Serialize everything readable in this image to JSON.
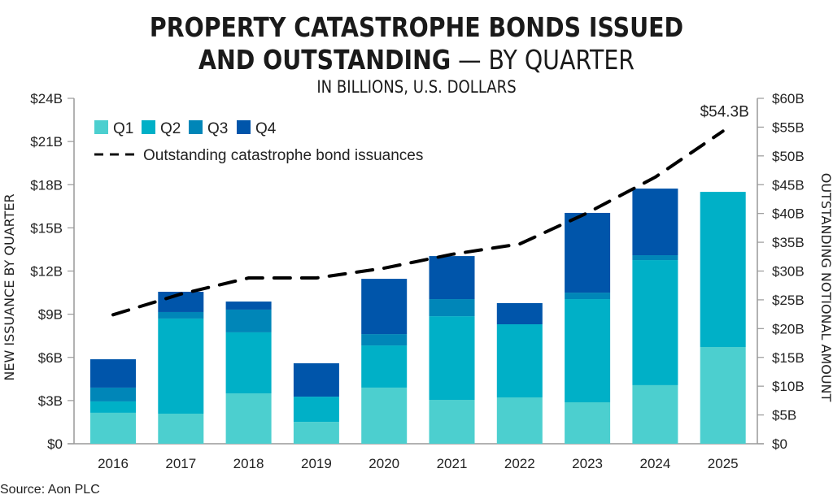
{
  "header": {
    "title_line1": "PROPERTY CATASTROPHE BONDS ISSUED",
    "title_line2_bold": "AND OUTSTANDING",
    "title_line2_rest": " — BY QUARTER",
    "subtitle": "IN BILLIONS, U.S. DOLLARS"
  },
  "source": "Source: Aon PLC",
  "chart_data": {
    "type": "bar",
    "stacked": true,
    "title": "PROPERTY CATASTROPHE BONDS ISSUED AND OUTSTANDING — BY QUARTER",
    "subtitle": "IN BILLIONS, U.S. DOLLARS",
    "categories": [
      "2016",
      "2017",
      "2018",
      "2019",
      "2020",
      "2021",
      "2022",
      "2023",
      "2024",
      "2025"
    ],
    "series": [
      {
        "name": "Q1",
        "color": "#4ccfcf",
        "axis": "left",
        "values": [
          2.15,
          2.09,
          3.5,
          1.52,
          3.9,
          3.05,
          3.22,
          2.88,
          4.07,
          6.72
        ]
      },
      {
        "name": "Q2",
        "color": "#00b0c7",
        "axis": "left",
        "values": [
          0.79,
          6.61,
          4.24,
          1.75,
          2.93,
          5.81,
          5.08,
          7.17,
          8.69,
          10.78
        ]
      },
      {
        "name": "Q3",
        "color": "#0086b8",
        "axis": "left",
        "values": [
          0.96,
          0.45,
          1.58,
          0,
          0.79,
          1.19,
          0,
          0.45,
          0.34,
          0
        ]
      },
      {
        "name": "Q4",
        "color": "#0055aa",
        "axis": "left",
        "values": [
          1.97,
          1.41,
          0.56,
          2.32,
          3.84,
          2.99,
          1.47,
          5.54,
          4.63,
          0
        ]
      }
    ],
    "line": {
      "name": "Outstanding catastrophe bond issuances",
      "style": "dashed",
      "color": "#000000",
      "axis": "right",
      "values": [
        22.4,
        26.0,
        28.8,
        28.8,
        30.5,
        32.9,
        34.7,
        40.1,
        46.3,
        54.3
      ]
    },
    "annotations": [
      {
        "category": "2025",
        "series": "line",
        "text": "$54.3B"
      }
    ],
    "ylabel": "NEW ISSUANCE BY QUARTER",
    "y2label": "OUTSTANDING NOTIONAL AMOUNT",
    "xlabel": "",
    "ylim": [
      0,
      24
    ],
    "y2lim": [
      0,
      60
    ],
    "yticks": [
      0,
      3,
      6,
      9,
      12,
      15,
      18,
      21,
      24
    ],
    "ytick_labels": [
      "$0",
      "$3B",
      "$6B",
      "$9B",
      "$12B",
      "$15B",
      "$18B",
      "$21B",
      "$24B"
    ],
    "y2ticks": [
      0,
      5,
      10,
      15,
      20,
      25,
      30,
      35,
      40,
      45,
      50,
      55,
      60
    ],
    "y2tick_labels": [
      "$0",
      "$5B",
      "$10B",
      "$15B",
      "$20B",
      "$25B",
      "$30B",
      "$35B",
      "$40B",
      "$45B",
      "$50B",
      "$55B",
      "$60B"
    ],
    "grid": false,
    "legend_position": "top-left",
    "legend": [
      "Q1",
      "Q2",
      "Q3",
      "Q4",
      "Outstanding catastrophe bond issuances"
    ]
  }
}
